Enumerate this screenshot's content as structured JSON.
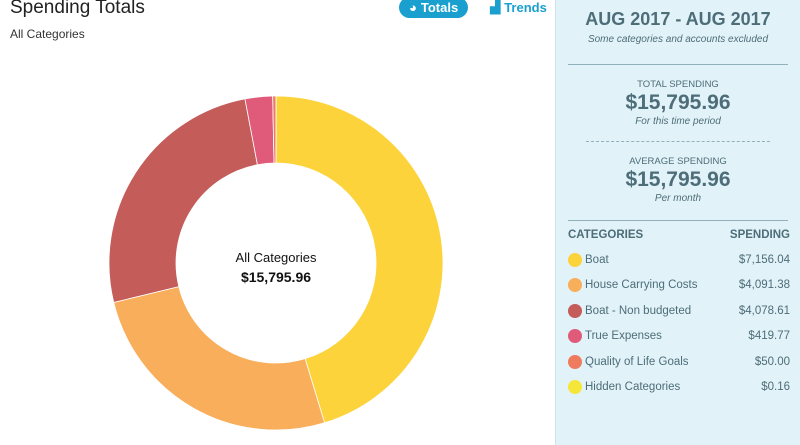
{
  "header": {
    "title": "Spending Totals",
    "subtitle": "All Categories"
  },
  "tabs": [
    {
      "label": "Totals",
      "icon": "pie-chart-icon",
      "active": true
    },
    {
      "label": "Trends",
      "icon": "area-chart-icon",
      "active": false
    }
  ],
  "chart_data": {
    "type": "pie",
    "title": "All Categories",
    "center_value": "$15,795.96",
    "categories": [
      "Boat",
      "House Carrying Costs",
      "Boat - Non budgeted",
      "True Expenses",
      "Quality of Life Goals",
      "Hidden Categories"
    ],
    "values": [
      7156.04,
      4091.38,
      4078.61,
      419.77,
      50.0,
      0.16
    ],
    "colors": [
      "#fcd33a",
      "#f8ae5a",
      "#c45c5a",
      "#e05a7a",
      "#ef7b5e",
      "#f6e63a"
    ]
  },
  "panel": {
    "range": "AUG 2017 - AUG 2017",
    "note": "Some categories and accounts excluded",
    "total": {
      "label": "Total Spending",
      "value": "$15,795.96",
      "period": "For this time period"
    },
    "average": {
      "label": "Average Spending",
      "value": "$15,795.96",
      "period": "Per month"
    },
    "col_categories": "CATEGORIES",
    "col_spending": "SPENDING",
    "rows": [
      {
        "name": "Boat",
        "amount": "$7,156.04"
      },
      {
        "name": "House Carrying Costs",
        "amount": "$4,091.38"
      },
      {
        "name": "Boat - Non budgeted",
        "amount": "$4,078.61"
      },
      {
        "name": "True Expenses",
        "amount": "$419.77"
      },
      {
        "name": "Quality of Life Goals",
        "amount": "$50.00"
      },
      {
        "name": "Hidden Categories",
        "amount": "$0.16"
      }
    ]
  }
}
